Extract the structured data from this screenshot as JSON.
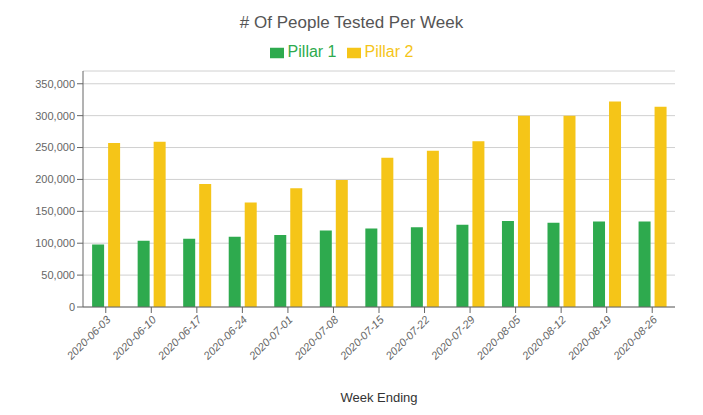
{
  "chart_data": {
    "type": "bar",
    "title": "# Of People Tested Per Week",
    "x_label": "Week Ending",
    "categories": [
      "2020-06-03",
      "2020-06-10",
      "2020-06-17",
      "2020-06-24",
      "2020-07-01",
      "2020-07-08",
      "2020-07-15",
      "2020-07-22",
      "2020-07-29",
      "2020-08-05",
      "2020-08-12",
      "2020-08-19",
      "2020-08-26"
    ],
    "series": [
      {
        "name": "Pillar 1",
        "color": "#2eaa4e",
        "values": [
          98000,
          104000,
          107000,
          110000,
          113000,
          120000,
          123000,
          125000,
          129000,
          135000,
          132000,
          134000,
          134000
        ]
      },
      {
        "name": "Pillar 2",
        "color": "#f5c518",
        "values": [
          257000,
          259000,
          193000,
          164000,
          186000,
          199000,
          234000,
          245000,
          260000,
          300000,
          300000,
          322000,
          314000
        ]
      }
    ],
    "ylim": [
      0,
      370000
    ],
    "yticks": [
      0,
      {
        "value": 50000,
        "label": "50,000"
      },
      {
        "value": 100000,
        "label": "100,000"
      },
      {
        "value": 150000,
        "label": "150,000"
      },
      {
        "value": 200000,
        "label": "200,000"
      },
      {
        "value": 250000,
        "label": "250,000"
      },
      {
        "value": 300000,
        "label": "300,000"
      },
      {
        "value": 350000,
        "label": "350,000"
      }
    ],
    "grid": true,
    "legend": "top"
  }
}
